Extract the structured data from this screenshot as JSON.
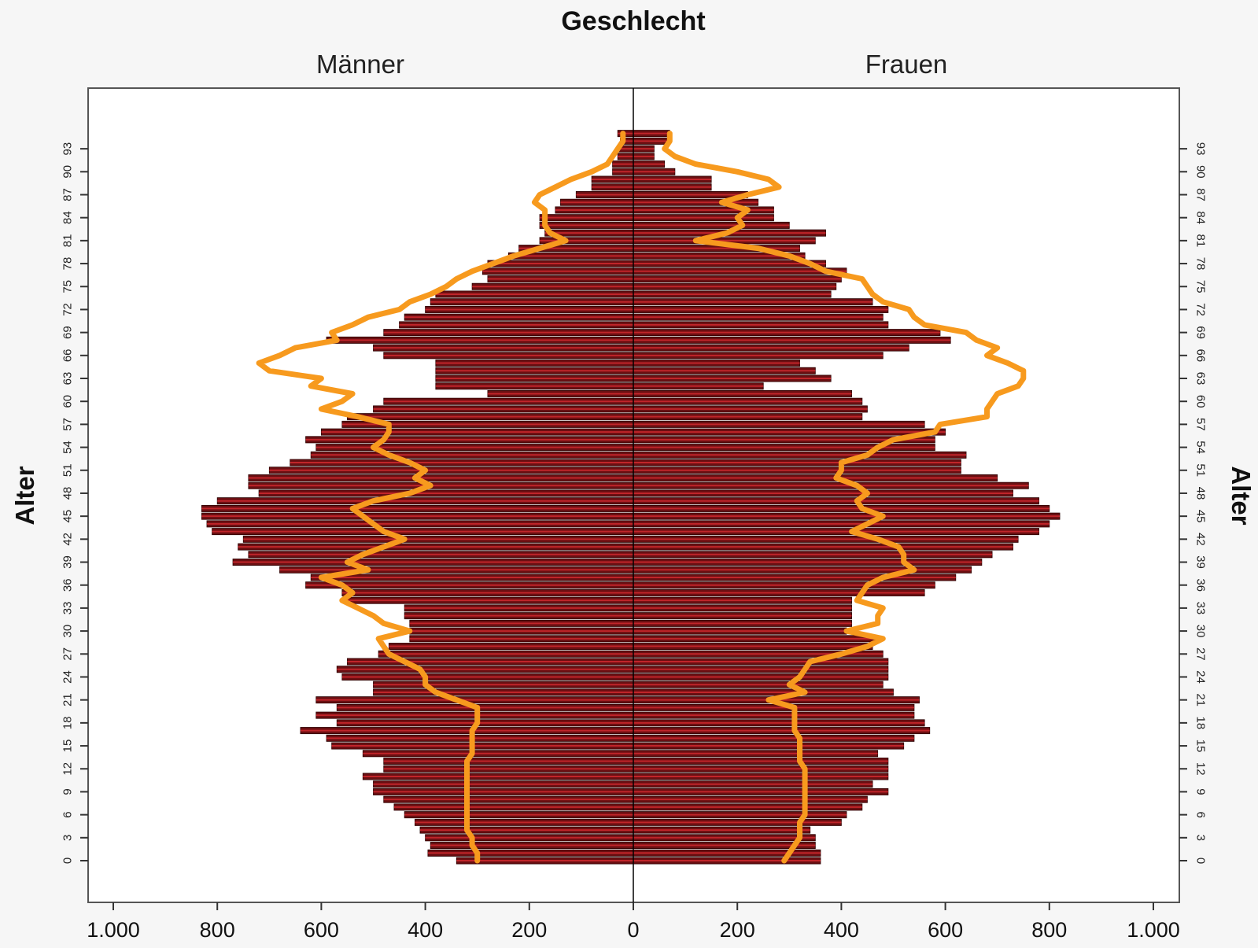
{
  "chart_data": {
    "type": "bar",
    "title": "Geschlecht",
    "left_group": "Männer",
    "right_group": "Frauen",
    "ylabel": "Alter",
    "xlim": [
      -1000,
      1000
    ],
    "ylim": [
      -3.5,
      96.5
    ],
    "x_ticks": [
      {
        "v": -1000,
        "label": "1.000"
      },
      {
        "v": -800,
        "label": "800"
      },
      {
        "v": -600,
        "label": "600"
      },
      {
        "v": -400,
        "label": "400"
      },
      {
        "v": -200,
        "label": "200"
      },
      {
        "v": 0,
        "label": "0"
      },
      {
        "v": 200,
        "label": "200"
      },
      {
        "v": 400,
        "label": "400"
      },
      {
        "v": 600,
        "label": "600"
      },
      {
        "v": 800,
        "label": "800"
      },
      {
        "v": 1000,
        "label": "1.000"
      }
    ],
    "y_ticks": [
      0,
      3,
      6,
      9,
      12,
      15,
      18,
      21,
      24,
      27,
      30,
      33,
      36,
      39,
      42,
      45,
      48,
      51,
      54,
      57,
      60,
      63,
      66,
      69,
      72,
      75,
      78,
      81,
      84,
      87,
      90,
      93
    ],
    "bar_color": "#6b0f12",
    "line_color": "#f79a1e",
    "ages": [
      0,
      1,
      2,
      3,
      4,
      5,
      6,
      7,
      8,
      9,
      10,
      11,
      12,
      13,
      14,
      15,
      16,
      17,
      18,
      19,
      20,
      21,
      22,
      23,
      24,
      25,
      26,
      27,
      28,
      29,
      30,
      31,
      32,
      33,
      34,
      35,
      36,
      37,
      38,
      39,
      40,
      41,
      42,
      43,
      44,
      45,
      46,
      47,
      48,
      49,
      50,
      51,
      52,
      53,
      54,
      55,
      56,
      57,
      58,
      59,
      60,
      61,
      62,
      63,
      64,
      65,
      66,
      67,
      68,
      69,
      70,
      71,
      72,
      73,
      74,
      75,
      76,
      77,
      78,
      79,
      80,
      81,
      82,
      83,
      84,
      85,
      86,
      87,
      88,
      89,
      90,
      91,
      92,
      93,
      94,
      95
    ],
    "series": [
      {
        "name": "Männer",
        "values": [
          340,
          395,
          390,
          400,
          410,
          420,
          440,
          460,
          480,
          500,
          500,
          520,
          480,
          480,
          520,
          580,
          590,
          640,
          570,
          610,
          570,
          610,
          500,
          500,
          560,
          570,
          550,
          490,
          470,
          430,
          430,
          430,
          440,
          440,
          550,
          560,
          630,
          620,
          680,
          770,
          740,
          760,
          750,
          810,
          820,
          830,
          830,
          800,
          720,
          740,
          740,
          700,
          660,
          620,
          610,
          630,
          600,
          560,
          550,
          500,
          480,
          280,
          380,
          380,
          380,
          380,
          480,
          500,
          590,
          480,
          450,
          440,
          400,
          390,
          380,
          310,
          280,
          290,
          280,
          240,
          220,
          180,
          170,
          180,
          180,
          150,
          140,
          110,
          80,
          80,
          40,
          40,
          30,
          30,
          25,
          30
        ]
      },
      {
        "name": "Frauen",
        "values": [
          360,
          360,
          350,
          350,
          340,
          400,
          410,
          440,
          450,
          490,
          460,
          490,
          490,
          490,
          470,
          520,
          540,
          570,
          560,
          540,
          540,
          550,
          500,
          480,
          490,
          490,
          490,
          480,
          460,
          470,
          410,
          420,
          420,
          420,
          420,
          560,
          580,
          620,
          650,
          670,
          690,
          730,
          740,
          780,
          800,
          820,
          800,
          780,
          730,
          760,
          700,
          630,
          630,
          640,
          580,
          580,
          600,
          560,
          440,
          450,
          440,
          420,
          250,
          380,
          350,
          320,
          480,
          530,
          610,
          590,
          490,
          480,
          490,
          460,
          380,
          390,
          400,
          410,
          370,
          330,
          320,
          350,
          370,
          300,
          270,
          270,
          240,
          220,
          150,
          150,
          80,
          60,
          40,
          40,
          70,
          70
        ]
      },
      {
        "name": "Männer (orange)",
        "values": [
          300,
          300,
          310,
          310,
          320,
          320,
          320,
          320,
          320,
          320,
          320,
          320,
          320,
          320,
          310,
          310,
          310,
          310,
          300,
          300,
          300,
          340,
          380,
          400,
          400,
          410,
          440,
          470,
          480,
          490,
          430,
          480,
          500,
          530,
          560,
          540,
          560,
          600,
          510,
          550,
          520,
          480,
          440,
          480,
          500,
          520,
          540,
          500,
          430,
          390,
          420,
          400,
          430,
          470,
          500,
          480,
          470,
          470,
          530,
          600,
          560,
          540,
          620,
          600,
          700,
          720,
          680,
          650,
          570,
          580,
          540,
          510,
          450,
          430,
          390,
          360,
          340,
          310,
          270,
          230,
          180,
          130,
          160,
          170,
          170,
          170,
          190,
          180,
          150,
          120,
          80,
          50,
          40,
          30,
          20,
          20
        ]
      },
      {
        "name": "Frauen (orange)",
        "values": [
          290,
          300,
          310,
          320,
          320,
          320,
          330,
          330,
          330,
          330,
          330,
          330,
          330,
          320,
          320,
          320,
          320,
          310,
          310,
          310,
          310,
          260,
          330,
          300,
          320,
          330,
          340,
          400,
          450,
          480,
          410,
          470,
          470,
          480,
          430,
          440,
          450,
          480,
          540,
          520,
          520,
          510,
          470,
          420,
          450,
          480,
          440,
          430,
          450,
          430,
          390,
          400,
          400,
          450,
          470,
          500,
          580,
          590,
          680,
          680,
          690,
          700,
          740,
          750,
          750,
          720,
          680,
          700,
          660,
          640,
          560,
          540,
          530,
          480,
          460,
          450,
          440,
          370,
          340,
          300,
          240,
          120,
          180,
          210,
          200,
          220,
          170,
          220,
          280,
          260,
          200,
          120,
          80,
          60,
          70,
          70
        ]
      }
    ]
  }
}
